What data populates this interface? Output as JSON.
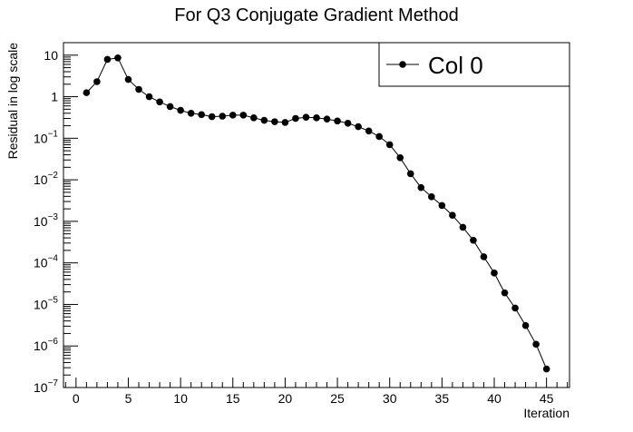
{
  "chart_data": {
    "type": "line",
    "title": "For Q3 Conjugate Gradient Method",
    "xlabel": "Iteration",
    "ylabel": "Residual in log scale",
    "yscale": "log",
    "xlim": [
      -1.2,
      47.2
    ],
    "ylim": [
      1e-07,
      20
    ],
    "xticks": [
      0,
      5,
      10,
      15,
      20,
      25,
      30,
      35,
      40,
      45
    ],
    "xtick_labels": [
      "0",
      "5",
      "10",
      "15",
      "20",
      "25",
      "30",
      "35",
      "40",
      "45"
    ],
    "yticks": [
      {
        "value": 1e-07,
        "base": "10",
        "exp": "−7"
      },
      {
        "value": 1e-06,
        "base": "10",
        "exp": "−6"
      },
      {
        "value": 1e-05,
        "base": "10",
        "exp": "−5"
      },
      {
        "value": 0.0001,
        "base": "10",
        "exp": "−4"
      },
      {
        "value": 0.001,
        "base": "10",
        "exp": "−3"
      },
      {
        "value": 0.01,
        "base": "10",
        "exp": "−2"
      },
      {
        "value": 0.1,
        "base": "10",
        "exp": "−1"
      },
      {
        "value": 1,
        "base": "1",
        "exp": ""
      },
      {
        "value": 10,
        "base": "10",
        "exp": ""
      }
    ],
    "grid": false,
    "legend_position": "top-right",
    "series": [
      {
        "name": "Col 0",
        "color": "#000000",
        "marker": "circle",
        "x": [
          1,
          2,
          3,
          4,
          5,
          6,
          7,
          8,
          9,
          10,
          11,
          12,
          13,
          14,
          15,
          16,
          17,
          18,
          19,
          20,
          21,
          22,
          23,
          24,
          25,
          26,
          27,
          28,
          29,
          30,
          31,
          32,
          33,
          34,
          35,
          36,
          37,
          38,
          39,
          40,
          41,
          42,
          43,
          44,
          45
        ],
        "y": [
          1.25,
          2.3,
          7.9,
          8.6,
          2.6,
          1.5,
          1.0,
          0.75,
          0.58,
          0.47,
          0.4,
          0.37,
          0.33,
          0.34,
          0.36,
          0.36,
          0.31,
          0.27,
          0.25,
          0.24,
          0.3,
          0.32,
          0.31,
          0.29,
          0.26,
          0.23,
          0.19,
          0.15,
          0.11,
          0.07,
          0.034,
          0.014,
          0.0065,
          0.0039,
          0.0024,
          0.0014,
          0.00072,
          0.00035,
          0.00014,
          5.7e-05,
          1.9e-05,
          8.2e-06,
          3.1e-06,
          1.1e-06,
          2.8e-07
        ]
      }
    ]
  }
}
